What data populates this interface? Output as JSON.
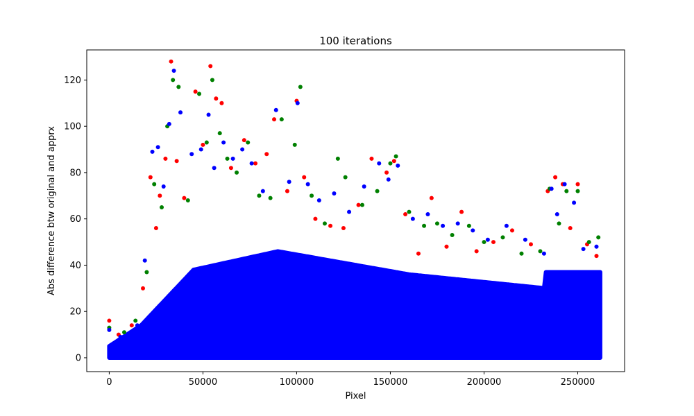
{
  "chart_data": {
    "type": "scatter",
    "title": "100 iterations",
    "xlabel": "Pixel",
    "ylabel": "Abs difference btw original and apprx",
    "xlim": [
      -12000,
      275000
    ],
    "ylim": [
      -6,
      133
    ],
    "xticks": [
      0,
      50000,
      100000,
      150000,
      200000,
      250000
    ],
    "yticks": [
      0,
      20,
      40,
      60,
      80,
      100,
      120
    ],
    "grid": false,
    "legend": "none",
    "series": [
      {
        "color": "#ff0000",
        "x": [
          0,
          5000,
          12000,
          18000,
          22000,
          25000,
          27000,
          30000,
          33000,
          36000,
          40000,
          46000,
          50000,
          54000,
          57000,
          60000,
          65000,
          72000,
          78000,
          84000,
          88000,
          95000,
          100000,
          104000,
          110000,
          118000,
          125000,
          133000,
          140000,
          148000,
          152000,
          158000,
          165000,
          172000,
          180000,
          188000,
          196000,
          205000,
          215000,
          225000,
          234000,
          238000,
          242000,
          246000,
          250000,
          255000,
          260000
        ],
        "y": [
          16,
          10,
          14,
          30,
          78,
          56,
          70,
          86,
          128,
          85,
          69,
          115,
          92,
          126,
          112,
          110,
          82,
          94,
          84,
          88,
          103,
          72,
          111,
          78,
          60,
          57,
          56,
          66,
          86,
          80,
          85,
          62,
          45,
          69,
          48,
          63,
          46,
          50,
          55,
          49,
          72,
          78,
          75,
          56,
          75,
          49,
          44
        ]
      },
      {
        "color": "#008000",
        "x": [
          0,
          8000,
          14000,
          20000,
          24000,
          28000,
          31000,
          34000,
          37000,
          42000,
          48000,
          52000,
          55000,
          59000,
          63000,
          68000,
          74000,
          80000,
          86000,
          92000,
          99000,
          102000,
          108000,
          115000,
          122000,
          126000,
          135000,
          143000,
          150000,
          153000,
          160000,
          168000,
          175000,
          183000,
          192000,
          200000,
          210000,
          220000,
          230000,
          235000,
          240000,
          244000,
          250000,
          256000,
          261000
        ],
        "y": [
          13,
          11,
          16,
          37,
          75,
          65,
          100,
          120,
          117,
          68,
          114,
          93,
          120,
          97,
          86,
          80,
          93,
          70,
          69,
          103,
          92,
          117,
          70,
          58,
          86,
          78,
          66,
          72,
          84,
          87,
          63,
          57,
          58,
          53,
          57,
          50,
          52,
          45,
          46,
          73,
          58,
          72,
          72,
          50,
          52
        ]
      },
      {
        "color": "#0000ff",
        "x": [
          0,
          6000,
          15000,
          19000,
          23000,
          26000,
          29000,
          32000,
          34500,
          38000,
          44000,
          49000,
          53000,
          56000,
          61000,
          66000,
          71000,
          76000,
          82000,
          89000,
          96000,
          100500,
          106000,
          112000,
          120000,
          128000,
          136000,
          144000,
          149000,
          154000,
          162000,
          170000,
          178000,
          186000,
          194000,
          202000,
          212000,
          222000,
          232000,
          236000,
          239000,
          243000,
          248000,
          253000,
          260000
        ],
        "y": [
          12,
          9,
          14,
          42,
          89,
          91,
          74,
          101,
          124,
          106,
          88,
          90,
          105,
          82,
          93,
          86,
          90,
          84,
          72,
          107,
          76,
          110,
          75,
          68,
          71,
          63,
          74,
          84,
          77,
          83,
          60,
          62,
          57,
          58,
          55,
          51,
          57,
          51,
          45,
          73,
          62,
          75,
          67,
          47,
          48
        ]
      }
    ]
  }
}
